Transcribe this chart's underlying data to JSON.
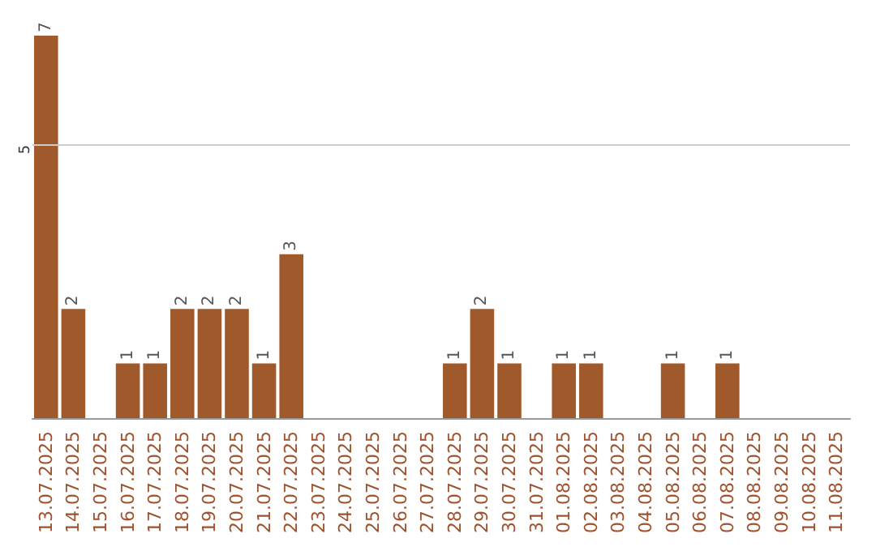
{
  "chart_data": {
    "type": "bar",
    "categories": [
      "13.07.2025",
      "14.07.2025",
      "15.07.2025",
      "16.07.2025",
      "17.07.2025",
      "18.07.2025",
      "19.07.2025",
      "20.07.2025",
      "21.07.2025",
      "22.07.2025",
      "23.07.2025",
      "24.07.2025",
      "25.07.2025",
      "26.07.2025",
      "27.07.2025",
      "28.07.2025",
      "29.07.2025",
      "30.07.2025",
      "31.07.2025",
      "01.08.2025",
      "02.08.2025",
      "03.08.2025",
      "04.08.2025",
      "05.08.2025",
      "06.08.2025",
      "07.08.2025",
      "08.08.2025",
      "09.08.2025",
      "10.08.2025",
      "11.08.2025"
    ],
    "values": [
      7,
      2,
      0,
      1,
      1,
      2,
      2,
      2,
      1,
      3,
      0,
      0,
      0,
      0,
      0,
      1,
      2,
      1,
      0,
      1,
      1,
      0,
      0,
      1,
      0,
      1,
      0,
      0,
      0,
      0
    ],
    "value_labels": [
      "7",
      "2",
      null,
      "1",
      "1",
      "2",
      "2",
      "2",
      "1",
      "3",
      null,
      null,
      null,
      null,
      null,
      "1",
      "2",
      "1",
      null,
      "1",
      "1",
      null,
      null,
      "1",
      null,
      "1",
      null,
      null,
      null,
      null
    ],
    "color": "#a0592a",
    "tick_labels": "x",
    "ref_lines": [
      {
        "axis": "y",
        "value": 5,
        "label": "5",
        "color": "#cccccc"
      }
    ]
  }
}
